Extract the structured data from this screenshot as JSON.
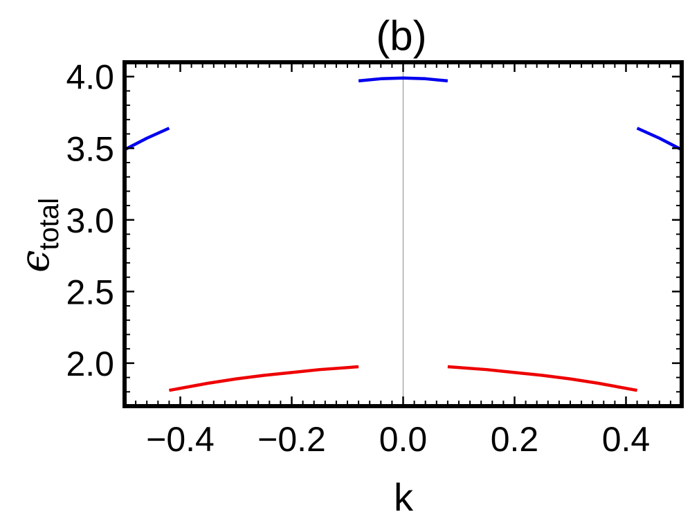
{
  "chart_data": {
    "type": "line",
    "title": "(b)",
    "xlabel": "k",
    "ylabel": "ϵ",
    "ylabel_subscript": "total",
    "xlim": [
      -0.5,
      0.5
    ],
    "ylim": [
      1.7,
      4.1
    ],
    "xticks": [
      -0.4,
      -0.2,
      0.0,
      0.2,
      0.4
    ],
    "xtick_labels": [
      "−0.4",
      "−0.2",
      "0.0",
      "0.2",
      "0.4"
    ],
    "yticks": [
      2.0,
      2.5,
      3.0,
      3.5,
      4.0
    ],
    "ytick_labels": [
      "2.0",
      "2.5",
      "3.0",
      "3.5",
      "4.0"
    ],
    "grid": false,
    "frame": true,
    "vertical_reference_line_at_x": 0.0,
    "series": [
      {
        "color": "#0000ee",
        "segments": [
          [
            [
              -0.5,
              3.49
            ],
            [
              -0.46,
              3.57
            ],
            [
              -0.42,
              3.64
            ]
          ],
          [
            [
              -0.08,
              3.97
            ],
            [
              -0.04,
              3.985
            ],
            [
              0.0,
              3.99
            ],
            [
              0.04,
              3.985
            ],
            [
              0.08,
              3.97
            ]
          ],
          [
            [
              0.42,
              3.64
            ],
            [
              0.46,
              3.57
            ],
            [
              0.5,
              3.49
            ]
          ]
        ]
      },
      {
        "color": "#ee0000",
        "segments": [
          [
            [
              -0.42,
              1.81
            ],
            [
              -0.35,
              1.86
            ],
            [
              -0.3,
              1.89
            ],
            [
              -0.25,
              1.915
            ],
            [
              -0.2,
              1.935
            ],
            [
              -0.15,
              1.955
            ],
            [
              -0.08,
              1.975
            ]
          ],
          [
            [
              0.08,
              1.975
            ],
            [
              0.15,
              1.955
            ],
            [
              0.2,
              1.935
            ],
            [
              0.25,
              1.915
            ],
            [
              0.3,
              1.89
            ],
            [
              0.35,
              1.86
            ],
            [
              0.42,
              1.81
            ]
          ]
        ]
      }
    ]
  }
}
